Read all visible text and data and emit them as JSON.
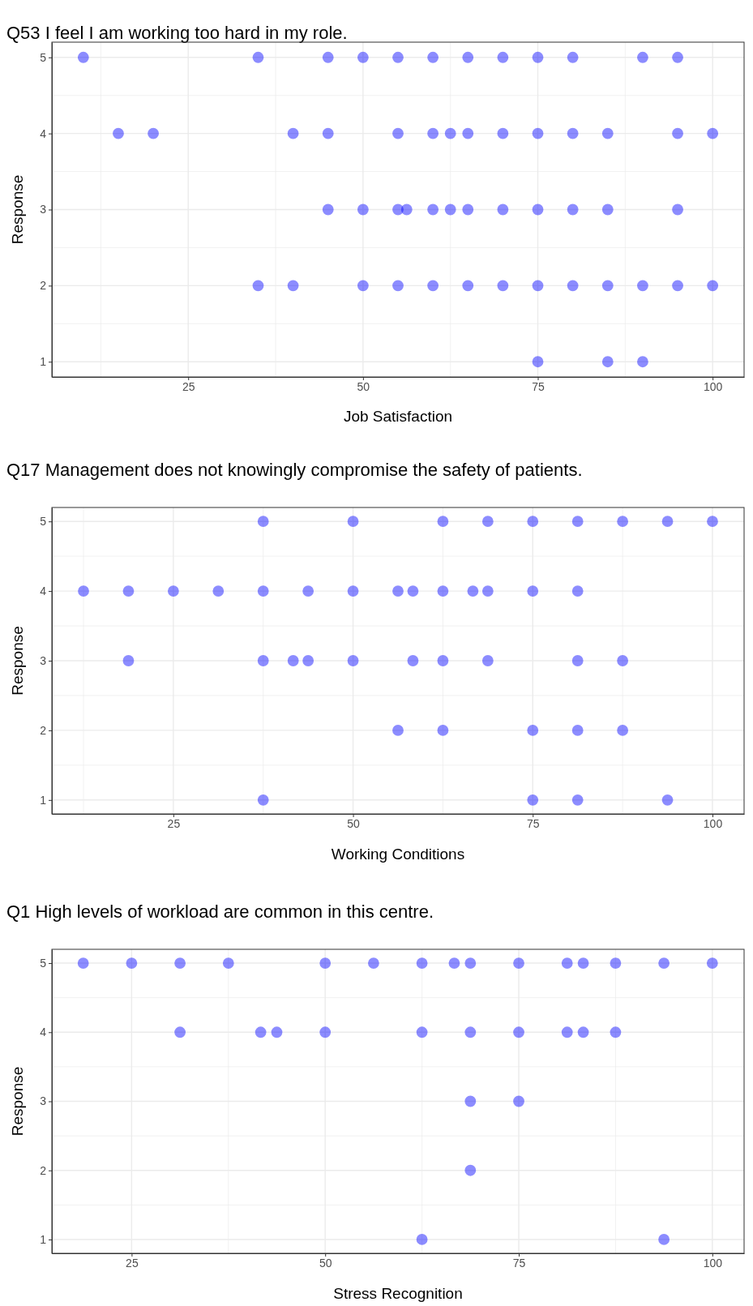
{
  "chart_data": [
    {
      "type": "scatter",
      "title": "Q53 I feel I am working too hard in my role.",
      "xlabel": "Job Satisfaction",
      "ylabel": "Response",
      "xlim": [
        5.5,
        104.5
      ],
      "ylim": [
        0.8,
        5.2
      ],
      "xticks": [
        25,
        50,
        75,
        100
      ],
      "yticks": [
        1,
        2,
        3,
        4,
        5
      ],
      "grid": true,
      "marker": "circle",
      "series": [
        {
          "color": "#0000ff",
          "x": [
            10,
            35,
            45,
            50,
            55,
            60,
            65,
            70,
            75,
            80,
            90,
            95
          ],
          "values": [
            5,
            5,
            5,
            5,
            5,
            5,
            5,
            5,
            5,
            5,
            5,
            5
          ]
        },
        {
          "color": "#0000ff",
          "x": [
            15,
            20,
            40,
            45,
            55,
            60,
            62.5,
            65,
            70,
            75,
            80,
            85,
            95,
            100
          ],
          "values": [
            4,
            4,
            4,
            4,
            4,
            4,
            4,
            4,
            4,
            4,
            4,
            4,
            4,
            4
          ]
        },
        {
          "color": "#0000ff",
          "x": [
            45,
            50,
            55,
            56.25,
            60,
            62.5,
            65,
            70,
            75,
            80,
            85,
            95
          ],
          "values": [
            3,
            3,
            3,
            3,
            3,
            3,
            3,
            3,
            3,
            3,
            3,
            3
          ]
        },
        {
          "color": "#0000ff",
          "x": [
            35,
            40,
            50,
            55,
            60,
            65,
            70,
            75,
            80,
            85,
            90,
            95,
            100
          ],
          "values": [
            2,
            2,
            2,
            2,
            2,
            2,
            2,
            2,
            2,
            2,
            2,
            2,
            2
          ]
        },
        {
          "color": "#0000ff",
          "x": [
            75,
            85,
            90
          ],
          "values": [
            1,
            1,
            1
          ]
        }
      ]
    },
    {
      "type": "scatter",
      "title": "Q17 Management does not knowingly compromise the safety of patients.",
      "xlabel": "Working Conditions",
      "ylabel": "Response",
      "xlim": [
        8.1,
        104.4
      ],
      "ylim": [
        0.8,
        5.2
      ],
      "xticks": [
        25,
        50,
        75,
        100
      ],
      "yticks": [
        1,
        2,
        3,
        4,
        5
      ],
      "grid": true,
      "marker": "circle",
      "series": [
        {
          "color": "#0000ff",
          "x": [
            37.5,
            50,
            62.5,
            68.75,
            75,
            81.25,
            87.5,
            93.75,
            100
          ],
          "values": [
            5,
            5,
            5,
            5,
            5,
            5,
            5,
            5,
            5
          ]
        },
        {
          "color": "#0000ff",
          "x": [
            12.5,
            18.75,
            25,
            31.25,
            37.5,
            43.75,
            50,
            56.25,
            58.33,
            62.5,
            66.67,
            68.75,
            75,
            81.25
          ],
          "values": [
            4,
            4,
            4,
            4,
            4,
            4,
            4,
            4,
            4,
            4,
            4,
            4,
            4,
            4
          ]
        },
        {
          "color": "#0000ff",
          "x": [
            18.75,
            37.5,
            41.67,
            43.75,
            50,
            58.33,
            62.5,
            68.75,
            81.25,
            87.5
          ],
          "values": [
            3,
            3,
            3,
            3,
            3,
            3,
            3,
            3,
            3,
            3
          ]
        },
        {
          "color": "#0000ff",
          "x": [
            56.25,
            62.5,
            75,
            81.25,
            87.5
          ],
          "values": [
            2,
            2,
            2,
            2,
            2
          ]
        },
        {
          "color": "#0000ff",
          "x": [
            37.5,
            75,
            81.25,
            93.75
          ],
          "values": [
            1,
            1,
            1,
            1
          ]
        }
      ]
    },
    {
      "type": "scatter",
      "title": "Q1 High levels of workload are common in this centre.",
      "xlabel": "Stress Recognition",
      "ylabel": "Response",
      "xlim": [
        14.7,
        104.1
      ],
      "ylim": [
        0.8,
        5.2
      ],
      "xticks": [
        25,
        50,
        75,
        100
      ],
      "yticks": [
        1,
        2,
        3,
        4,
        5
      ],
      "grid": true,
      "marker": "circle",
      "series": [
        {
          "color": "#0000ff",
          "x": [
            18.75,
            25,
            31.25,
            37.5,
            50,
            56.25,
            62.5,
            66.67,
            68.75,
            75,
            81.25,
            83.33,
            87.5,
            93.75,
            100
          ],
          "values": [
            5,
            5,
            5,
            5,
            5,
            5,
            5,
            5,
            5,
            5,
            5,
            5,
            5,
            5,
            5
          ]
        },
        {
          "color": "#0000ff",
          "x": [
            31.25,
            41.67,
            43.75,
            50,
            62.5,
            68.75,
            75,
            81.25,
            83.33,
            87.5
          ],
          "values": [
            4,
            4,
            4,
            4,
            4,
            4,
            4,
            4,
            4,
            4
          ]
        },
        {
          "color": "#0000ff",
          "x": [
            68.75,
            75
          ],
          "values": [
            3,
            3
          ]
        },
        {
          "color": "#0000ff",
          "x": [
            68.75
          ],
          "values": [
            2
          ]
        },
        {
          "color": "#0000ff",
          "x": [
            62.5,
            93.75
          ],
          "values": [
            1,
            1
          ]
        }
      ]
    }
  ]
}
